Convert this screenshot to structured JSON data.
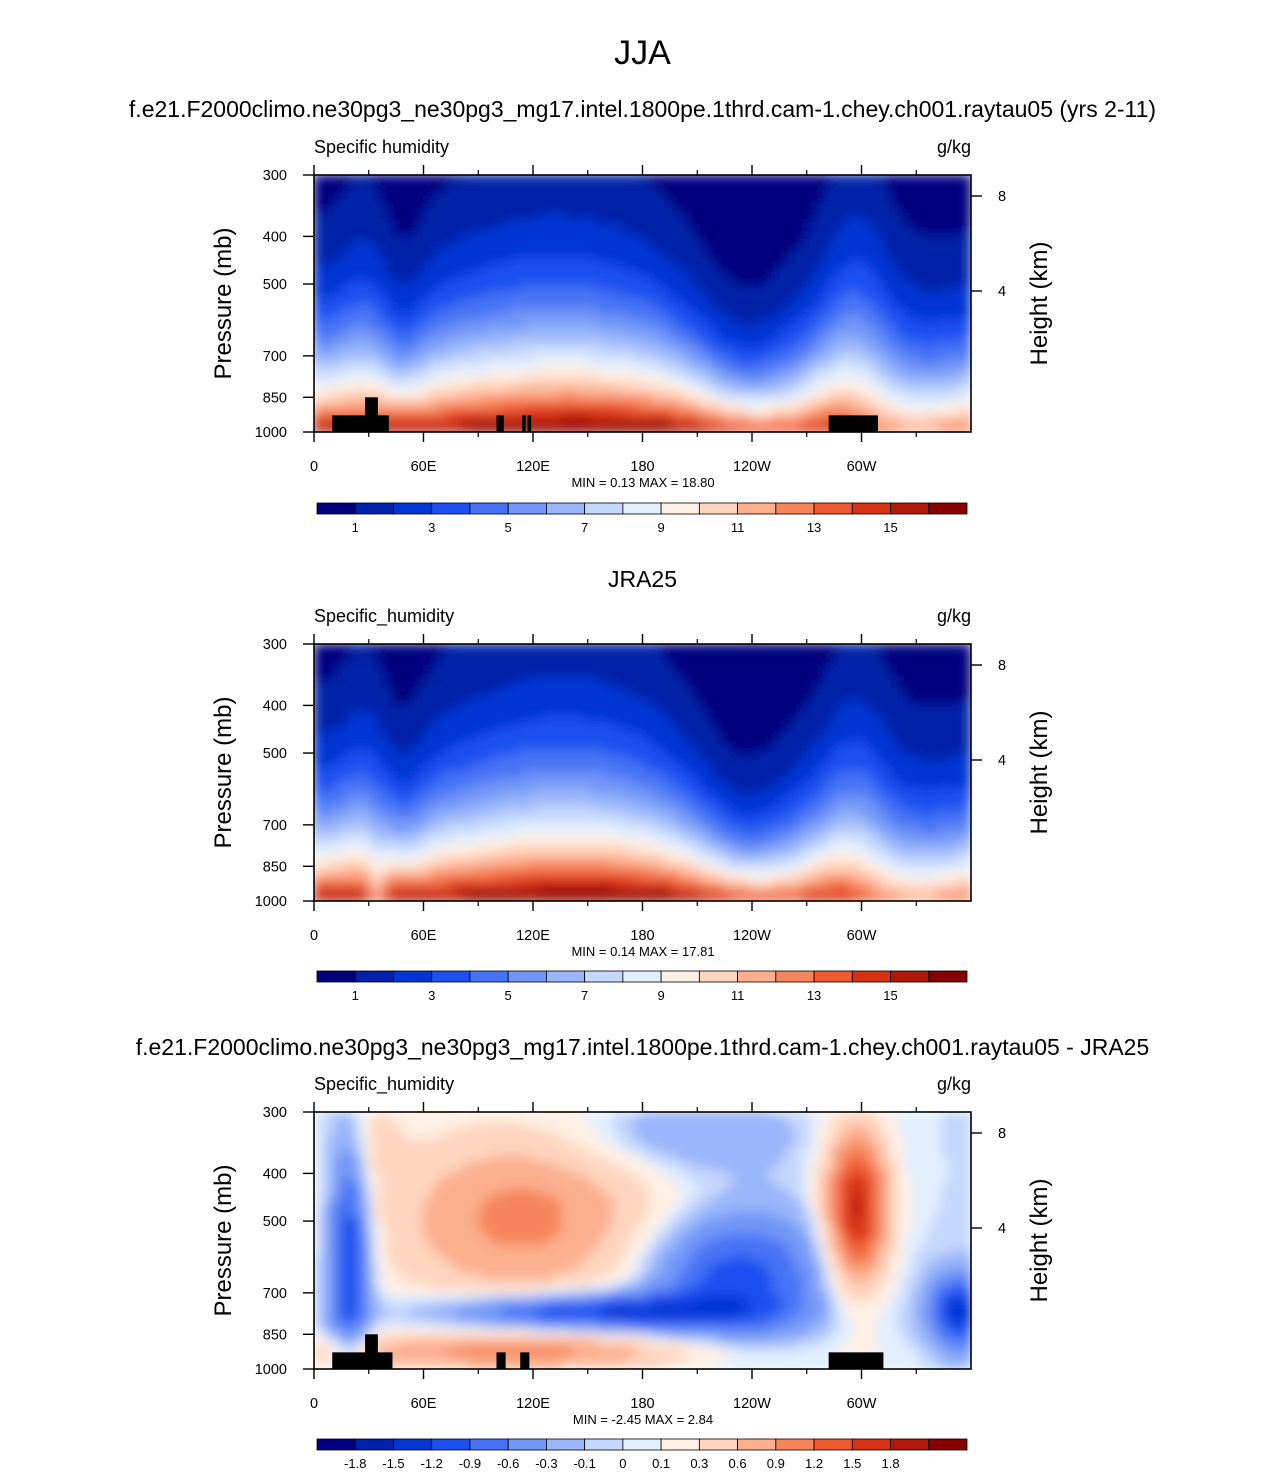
{
  "page_title": "JJA",
  "colors": {
    "abs_palette": [
      "#00007f",
      "#0022a8",
      "#0036d4",
      "#1e50f0",
      "#4673f5",
      "#7196f7",
      "#9ab5f9",
      "#c4d7fc",
      "#e2efff",
      "#fff0e4",
      "#ffd5c0",
      "#fbaf8d",
      "#f6855c",
      "#ef5a30",
      "#d83114",
      "#b01808",
      "#870000"
    ],
    "diff_palette": [
      "#00007f",
      "#0022a8",
      "#0036d4",
      "#1e50f0",
      "#4673f5",
      "#7196f7",
      "#9ab5f9",
      "#c4d7fc",
      "#e2efff",
      "#fff0e4",
      "#ffd5c0",
      "#fbaf8d",
      "#f6855c",
      "#ef5a30",
      "#d83114",
      "#b01808",
      "#870000"
    ],
    "topography": "#000000"
  },
  "chart_data": [
    {
      "type": "heatmap",
      "panel_title": "f.e21.F2000climo.ne30pg3_ne30pg3_mg17.intel.1800pe.1thrd.cam-1.chey.ch001.raytau05 (yrs 2-11)",
      "left_label": "Specific humidity",
      "right_label": "g/kg",
      "ylabel": "Pressure (mb)",
      "y2label": "Height (km)",
      "x_ticks": [
        "0",
        "60E",
        "120E",
        "180",
        "120W",
        "60W"
      ],
      "y_ticks": [
        "300",
        "400",
        "500",
        "700",
        "850",
        "1000"
      ],
      "y2_ticks": [
        "8",
        "4"
      ],
      "stats": {
        "min_label": "MIN =",
        "min": "0.13",
        "max_label": "MAX =",
        "max": "18.80"
      },
      "colorbar_labels": [
        "1",
        "3",
        "5",
        "7",
        "9",
        "11",
        "13",
        "15"
      ],
      "xlim": [
        0,
        360
      ],
      "ylim": [
        1000,
        300
      ],
      "y_scale": "log-pressure",
      "topography_blocks": [
        {
          "lon": [
            10,
            41
          ],
          "p": 925
        },
        {
          "lon": [
            28,
            35
          ],
          "p": 850
        },
        {
          "lon": [
            100,
            104
          ],
          "p": 925
        },
        {
          "lon": [
            114,
            116
          ],
          "p": 925
        },
        {
          "lon": [
            117,
            119
          ],
          "p": 925
        },
        {
          "lon": [
            282,
            309
          ],
          "p": 925
        }
      ]
    },
    {
      "type": "heatmap",
      "panel_title": "JRA25",
      "left_label": "Specific_humidity",
      "right_label": "g/kg",
      "ylabel": "Pressure (mb)",
      "y2label": "Height (km)",
      "x_ticks": [
        "0",
        "60E",
        "120E",
        "180",
        "120W",
        "60W"
      ],
      "y_ticks": [
        "300",
        "400",
        "500",
        "700",
        "850",
        "1000"
      ],
      "y2_ticks": [
        "8",
        "4"
      ],
      "stats": {
        "min_label": "MIN =",
        "min": "0.14",
        "max_label": "MAX =",
        "max": "17.81"
      },
      "colorbar_labels": [
        "1",
        "3",
        "5",
        "7",
        "9",
        "11",
        "13",
        "15"
      ],
      "xlim": [
        0,
        360
      ],
      "ylim": [
        1000,
        300
      ],
      "y_scale": "log-pressure",
      "topography_blocks": []
    },
    {
      "type": "heatmap",
      "panel_title": "f.e21.F2000climo.ne30pg3_ne30pg3_mg17.intel.1800pe.1thrd.cam-1.chey.ch001.raytau05 - JRA25",
      "left_label": "Specific_humidity",
      "right_label": "g/kg",
      "ylabel": "Pressure (mb)",
      "y2label": "Height (km)",
      "x_ticks": [
        "0",
        "60E",
        "120E",
        "180",
        "120W",
        "60W"
      ],
      "y_ticks": [
        "300",
        "400",
        "500",
        "700",
        "850",
        "1000"
      ],
      "y2_ticks": [
        "8",
        "4"
      ],
      "stats": {
        "min_label": "MIN =",
        "min": "-2.45",
        "max_label": "MAX =",
        "max": "2.84"
      },
      "colorbar_labels": [
        "-1.8",
        "-1.5",
        "-1.2",
        "-0.9",
        "-0.6",
        "-0.3",
        "-0.1",
        "0",
        "0.1",
        "0.3",
        "0.6",
        "0.9",
        "1.2",
        "1.5",
        "1.8"
      ],
      "xlim": [
        0,
        360
      ],
      "ylim": [
        1000,
        300
      ],
      "y_scale": "log-pressure",
      "topography_blocks": [
        {
          "lon": [
            10,
            43
          ],
          "p": 925
        },
        {
          "lon": [
            28,
            35
          ],
          "p": 850
        },
        {
          "lon": [
            100,
            105
          ],
          "p": 925
        },
        {
          "lon": [
            113,
            118
          ],
          "p": 925
        },
        {
          "lon": [
            282,
            312
          ],
          "p": 925
        }
      ]
    }
  ]
}
